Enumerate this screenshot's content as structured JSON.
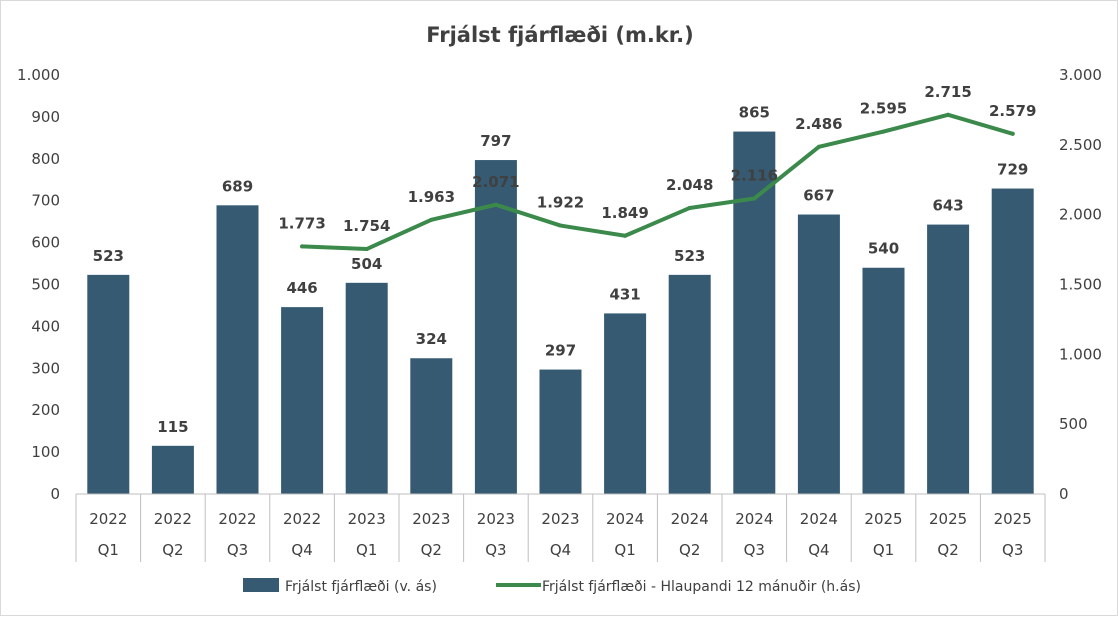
{
  "chart_data": {
    "type": "bar+line",
    "title": "Frjálst fjárflæði (m.kr.)",
    "categories": [
      {
        "year": "2022",
        "quarter": "Q1"
      },
      {
        "year": "2022",
        "quarter": "Q2"
      },
      {
        "year": "2022",
        "quarter": "Q3"
      },
      {
        "year": "2022",
        "quarter": "Q4"
      },
      {
        "year": "2023",
        "quarter": "Q1"
      },
      {
        "year": "2023",
        "quarter": "Q2"
      },
      {
        "year": "2023",
        "quarter": "Q3"
      },
      {
        "year": "2023",
        "quarter": "Q4"
      },
      {
        "year": "2024",
        "quarter": "Q1"
      },
      {
        "year": "2024",
        "quarter": "Q2"
      },
      {
        "year": "2024",
        "quarter": "Q3"
      },
      {
        "year": "2024",
        "quarter": "Q4"
      },
      {
        "year": "2025",
        "quarter": "Q1"
      },
      {
        "year": "2025",
        "quarter": "Q2"
      },
      {
        "year": "2025",
        "quarter": "Q3"
      }
    ],
    "series": [
      {
        "name": "Frjálst fjárflæði (v. ás)",
        "type": "bar",
        "axis": "left",
        "color": "#355a72",
        "values": [
          523,
          115,
          689,
          446,
          504,
          324,
          797,
          297,
          431,
          523,
          865,
          667,
          540,
          643,
          729
        ],
        "labels": [
          "523",
          "115",
          "689",
          "446",
          "504",
          "324",
          "797",
          "297",
          "431",
          "523",
          "865",
          "667",
          "540",
          "643",
          "729"
        ]
      },
      {
        "name": "Frjálst fjárflæði - Hlaupandi 12 mánuðir (h.ás)",
        "type": "line",
        "axis": "right",
        "color": "#3b8a4b",
        "values": [
          null,
          null,
          null,
          1773,
          1754,
          1963,
          2071,
          1922,
          1849,
          2048,
          2116,
          2486,
          2595,
          2715,
          2579
        ],
        "labels": [
          null,
          null,
          null,
          "1.773",
          "1.754",
          "1.963",
          "2.071",
          "1.922",
          "1.849",
          "2.048",
          "2.116",
          "2.486",
          "2.595",
          "2.715",
          "2.579"
        ]
      }
    ],
    "y_left": {
      "range": [
        0,
        1000
      ],
      "ticks": [
        0,
        100,
        200,
        300,
        400,
        500,
        600,
        700,
        800,
        900,
        1000
      ],
      "tick_labels": [
        "0",
        "100",
        "200",
        "300",
        "400",
        "500",
        "600",
        "700",
        "800",
        "900",
        "1.000"
      ]
    },
    "y_right": {
      "range": [
        0,
        3000
      ],
      "ticks": [
        0,
        500,
        1000,
        1500,
        2000,
        2500,
        3000
      ],
      "tick_labels": [
        "0",
        "500",
        "1.000",
        "1.500",
        "2.000",
        "2.500",
        "3.000"
      ]
    },
    "grid": false,
    "legend": "bottom"
  }
}
